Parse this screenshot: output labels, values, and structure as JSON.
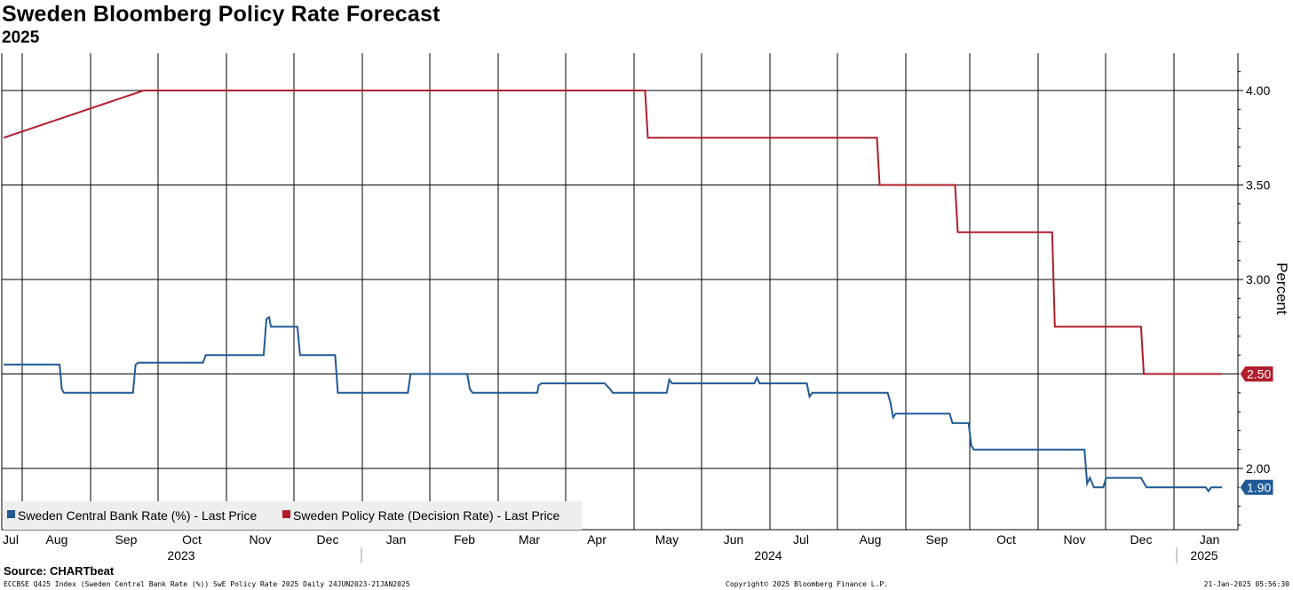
{
  "chart_data": {
    "type": "line",
    "title": "Sweden Bloomberg Policy Rate Forecast",
    "subtitle": "2025",
    "ylabel": "Percent",
    "ylim": [
      1.6,
      4.2
    ],
    "y_ticks": [
      "4.00",
      "3.50",
      "3.00",
      "2.50",
      "2.00"
    ],
    "x_months": [
      "Jul",
      "Aug",
      "Sep",
      "Oct",
      "Nov",
      "Dec",
      "Jan",
      "Feb",
      "Mar",
      "Apr",
      "May",
      "Jun",
      "Jul",
      "Aug",
      "Sep",
      "Oct",
      "Nov",
      "Dec",
      "Jan"
    ],
    "x_years": [
      "2023",
      "2024",
      "2025"
    ],
    "grid": true,
    "legend_position": "bottom-left",
    "series": [
      {
        "name": "Sweden Central Bank Rate (%) - Last Price",
        "color": "#1f5a96",
        "last_label": "1.90",
        "points": [
          [
            0.0,
            2.55
          ],
          [
            2.08,
            2.55
          ],
          [
            2.16,
            2.42
          ],
          [
            2.24,
            2.4
          ],
          [
            4.8,
            2.4
          ],
          [
            4.9,
            2.55
          ],
          [
            5.0,
            2.56
          ],
          [
            7.4,
            2.56
          ],
          [
            7.5,
            2.6
          ],
          [
            7.6,
            2.6
          ],
          [
            9.65,
            2.6
          ],
          [
            9.75,
            2.79
          ],
          [
            9.85,
            2.8
          ],
          [
            9.92,
            2.75
          ],
          [
            10.9,
            2.75
          ],
          [
            11.0,
            2.6
          ],
          [
            12.3,
            2.6
          ],
          [
            12.4,
            2.4
          ],
          [
            15.0,
            2.4
          ],
          [
            15.1,
            2.5
          ],
          [
            17.2,
            2.5
          ],
          [
            17.3,
            2.42
          ],
          [
            17.4,
            2.4
          ],
          [
            19.8,
            2.4
          ],
          [
            19.85,
            2.44
          ],
          [
            19.95,
            2.45
          ],
          [
            22.3,
            2.45
          ],
          [
            22.5,
            2.42
          ],
          [
            22.6,
            2.4
          ],
          [
            24.6,
            2.4
          ],
          [
            24.7,
            2.47
          ],
          [
            24.8,
            2.45
          ],
          [
            27.85,
            2.45
          ],
          [
            27.95,
            2.48
          ],
          [
            28.05,
            2.45
          ],
          [
            29.8,
            2.45
          ],
          [
            29.9,
            2.38
          ],
          [
            30.0,
            2.4
          ],
          [
            32.8,
            2.4
          ],
          [
            32.9,
            2.35
          ],
          [
            33.0,
            2.27
          ],
          [
            33.1,
            2.29
          ],
          [
            35.1,
            2.29
          ],
          [
            35.2,
            2.24
          ],
          [
            35.8,
            2.24
          ],
          [
            35.9,
            2.12
          ],
          [
            36.0,
            2.1
          ],
          [
            40.1,
            2.1
          ],
          [
            40.2,
            1.92
          ],
          [
            40.3,
            1.95
          ],
          [
            40.45,
            1.9
          ],
          [
            40.8,
            1.9
          ],
          [
            40.9,
            1.95
          ],
          [
            42.2,
            1.95
          ],
          [
            42.4,
            1.9
          ],
          [
            44.6,
            1.9
          ],
          [
            44.7,
            1.88
          ],
          [
            44.8,
            1.9
          ],
          [
            45.2,
            1.9
          ]
        ]
      },
      {
        "name": "Sweden Policy Rate (Decision Rate) - Last Price",
        "color": "#b01e2c",
        "last_label": "2.50",
        "points": [
          [
            0.0,
            3.75
          ],
          [
            5.2,
            4.0
          ],
          [
            23.8,
            4.0
          ],
          [
            23.9,
            3.75
          ],
          [
            32.4,
            3.75
          ],
          [
            32.5,
            3.5
          ],
          [
            35.3,
            3.5
          ],
          [
            35.4,
            3.25
          ],
          [
            38.9,
            3.25
          ],
          [
            39.0,
            2.75
          ],
          [
            42.2,
            2.75
          ],
          [
            42.3,
            2.5
          ],
          [
            45.2,
            2.5
          ]
        ]
      }
    ]
  },
  "footer": {
    "source": "Source: CHARTbeat",
    "left": "ECCBSE Q425 Index (Sweden Central Bank Rate (%)) SwE Policy Rate 2025  Daily 24JUN2023-21JAN2025",
    "center": "Copyright© 2025 Bloomberg Finance L.P.",
    "right": "21-Jan-2025 05:56:30"
  }
}
